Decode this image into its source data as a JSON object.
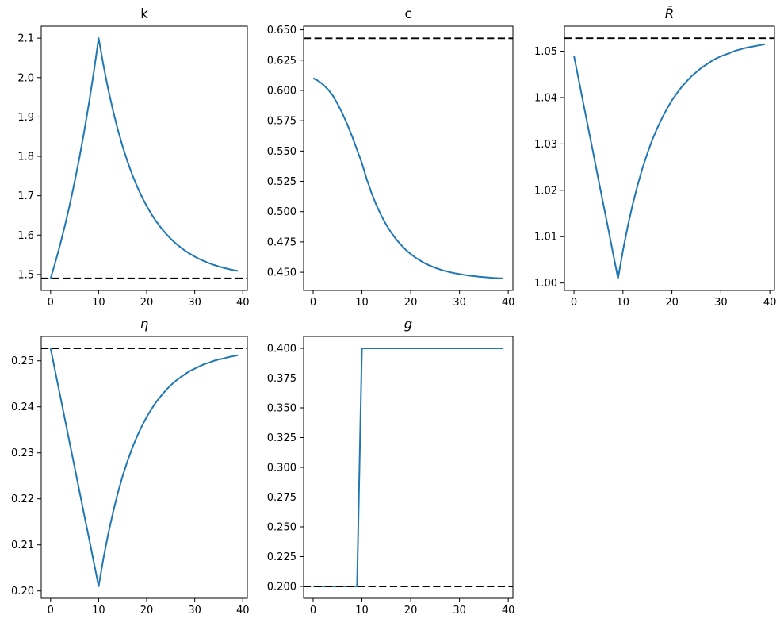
{
  "style": {
    "background": "#ffffff",
    "line_color": "#1f77b4",
    "dashed_color": "#000000",
    "spine_color": "#000000"
  },
  "chart_data": [
    {
      "id": "k",
      "type": "line",
      "title": "k",
      "title_italic": false,
      "legend": "none",
      "grid": false,
      "x_range": [
        0,
        39
      ],
      "xlim": [
        -1.95,
        40.95
      ],
      "ylim": [
        1.4595,
        2.1305
      ],
      "xticks": {
        "values": [
          0,
          10,
          20,
          30,
          40
        ],
        "labels": [
          "0",
          "10",
          "20",
          "30",
          "40"
        ]
      },
      "yticks": {
        "values": [
          1.5,
          1.6,
          1.7,
          1.8,
          1.9,
          2.0,
          2.1
        ],
        "labels": [
          "1.5",
          "1.6",
          "1.7",
          "1.8",
          "1.9",
          "2.0",
          "2.1"
        ]
      },
      "dashed_hline": 1.49,
      "values": [
        1.49,
        1.5315,
        1.5764,
        1.625,
        1.6777,
        1.7348,
        1.7967,
        1.8636,
        1.9362,
        2.0148,
        2.1,
        2.031,
        1.9698,
        1.9156,
        1.8675,
        1.8248,
        1.7869,
        1.7533,
        1.7236,
        1.6972,
        1.6737,
        1.6529,
        1.6345,
        1.6182,
        1.6037,
        1.5908,
        1.5794,
        1.5693,
        1.5603,
        1.5524,
        1.5453,
        1.5391,
        1.5335,
        1.5286,
        1.5242,
        1.5204,
        1.5169,
        1.5139,
        1.5112,
        1.5088
      ]
    },
    {
      "id": "c",
      "type": "line",
      "title": "c",
      "title_italic": false,
      "legend": "none",
      "grid": false,
      "x_range": [
        0,
        39
      ],
      "xlim": [
        -1.95,
        40.95
      ],
      "ylim": [
        0.435,
        0.653
      ],
      "xticks": {
        "values": [
          0,
          10,
          20,
          30,
          40
        ],
        "labels": [
          "0",
          "10",
          "20",
          "30",
          "40"
        ]
      },
      "yticks": {
        "values": [
          0.45,
          0.475,
          0.5,
          0.525,
          0.55,
          0.575,
          0.6,
          0.625,
          0.65
        ],
        "labels": [
          "0.450",
          "0.475",
          "0.500",
          "0.525",
          "0.550",
          "0.575",
          "0.600",
          "0.625",
          "0.650"
        ]
      },
      "dashed_hline": 0.643,
      "values": [
        0.61,
        0.608,
        0.605,
        0.601,
        0.596,
        0.589,
        0.581,
        0.572,
        0.562,
        0.551,
        0.54,
        0.5266,
        0.515,
        0.505,
        0.4965,
        0.4891,
        0.4827,
        0.4773,
        0.4726,
        0.4685,
        0.465,
        0.462,
        0.4595,
        0.4572,
        0.4553,
        0.4537,
        0.4523,
        0.4511,
        0.4501,
        0.4492,
        0.4485,
        0.4478,
        0.4472,
        0.4468,
        0.4463,
        0.446,
        0.4456,
        0.4453,
        0.4451,
        0.4449
      ]
    },
    {
      "id": "rbar",
      "type": "line",
      "title": "R̄",
      "title_italic": true,
      "legend": "none",
      "grid": false,
      "x_range": [
        0,
        39
      ],
      "xlim": [
        -1.95,
        40.95
      ],
      "ylim": [
        0.9984,
        1.0554
      ],
      "xticks": {
        "values": [
          0,
          10,
          20,
          30,
          40
        ],
        "labels": [
          "0",
          "10",
          "20",
          "30",
          "40"
        ]
      },
      "yticks": {
        "values": [
          1.0,
          1.01,
          1.02,
          1.03,
          1.04,
          1.05
        ],
        "labels": [
          "1.00",
          "1.01",
          "1.02",
          "1.03",
          "1.04",
          "1.05"
        ]
      },
      "dashed_hline": 1.0528,
      "values": [
        1.049,
        1.0437,
        1.0383,
        1.033,
        1.0277,
        1.0223,
        1.017,
        1.0117,
        1.0063,
        1.001,
        1.007,
        1.0123,
        1.017,
        1.0211,
        1.0248,
        1.028,
        1.0309,
        1.0334,
        1.0356,
        1.0376,
        1.0394,
        1.0409,
        1.0423,
        1.0435,
        1.0446,
        1.0455,
        1.0464,
        1.0471,
        1.0478,
        1.0484,
        1.0489,
        1.0493,
        1.0497,
        1.0501,
        1.0504,
        1.0507,
        1.0509,
        1.0511,
        1.0513,
        1.0515
      ]
    },
    {
      "id": "eta",
      "type": "line",
      "title": "η",
      "title_italic": true,
      "legend": "none",
      "grid": false,
      "x_range": [
        0,
        39
      ],
      "xlim": [
        -1.95,
        40.95
      ],
      "ylim": [
        0.1984,
        0.2553
      ],
      "xticks": {
        "values": [
          0,
          10,
          20,
          30,
          40
        ],
        "labels": [
          "0",
          "10",
          "20",
          "30",
          "40"
        ]
      },
      "yticks": {
        "values": [
          0.2,
          0.21,
          0.22,
          0.23,
          0.24,
          0.25
        ],
        "labels": [
          "0.20",
          "0.21",
          "0.22",
          "0.23",
          "0.24",
          "0.25"
        ]
      },
      "dashed_hline": 0.2527,
      "values": [
        0.2527,
        0.2475,
        0.2424,
        0.2372,
        0.232,
        0.2269,
        0.2217,
        0.2165,
        0.2114,
        0.2062,
        0.201,
        0.2071,
        0.2124,
        0.2171,
        0.2213,
        0.225,
        0.2282,
        0.2311,
        0.2336,
        0.2358,
        0.2378,
        0.2395,
        0.2411,
        0.2424,
        0.2436,
        0.2447,
        0.2456,
        0.2464,
        0.2471,
        0.2478,
        0.2483,
        0.2488,
        0.2493,
        0.2496,
        0.25,
        0.2503,
        0.2505,
        0.2508,
        0.251,
        0.2512
      ]
    },
    {
      "id": "g",
      "type": "line",
      "title": "g",
      "title_italic": true,
      "legend": "none",
      "grid": false,
      "x_range": [
        0,
        39
      ],
      "xlim": [
        -1.95,
        40.95
      ],
      "ylim": [
        0.19,
        0.41
      ],
      "xticks": {
        "values": [
          0,
          10,
          20,
          30,
          40
        ],
        "labels": [
          "0",
          "10",
          "20",
          "30",
          "40"
        ]
      },
      "yticks": {
        "values": [
          0.2,
          0.225,
          0.25,
          0.275,
          0.3,
          0.325,
          0.35,
          0.375,
          0.4
        ],
        "labels": [
          "0.200",
          "0.225",
          "0.250",
          "0.275",
          "0.300",
          "0.325",
          "0.350",
          "0.375",
          "0.400"
        ]
      },
      "dashed_hline": 0.2,
      "values": [
        0.2,
        0.2,
        0.2,
        0.2,
        0.2,
        0.2,
        0.2,
        0.2,
        0.2,
        0.2,
        0.4,
        0.4,
        0.4,
        0.4,
        0.4,
        0.4,
        0.4,
        0.4,
        0.4,
        0.4,
        0.4,
        0.4,
        0.4,
        0.4,
        0.4,
        0.4,
        0.4,
        0.4,
        0.4,
        0.4,
        0.4,
        0.4,
        0.4,
        0.4,
        0.4,
        0.4,
        0.4,
        0.4,
        0.4,
        0.4
      ]
    }
  ]
}
